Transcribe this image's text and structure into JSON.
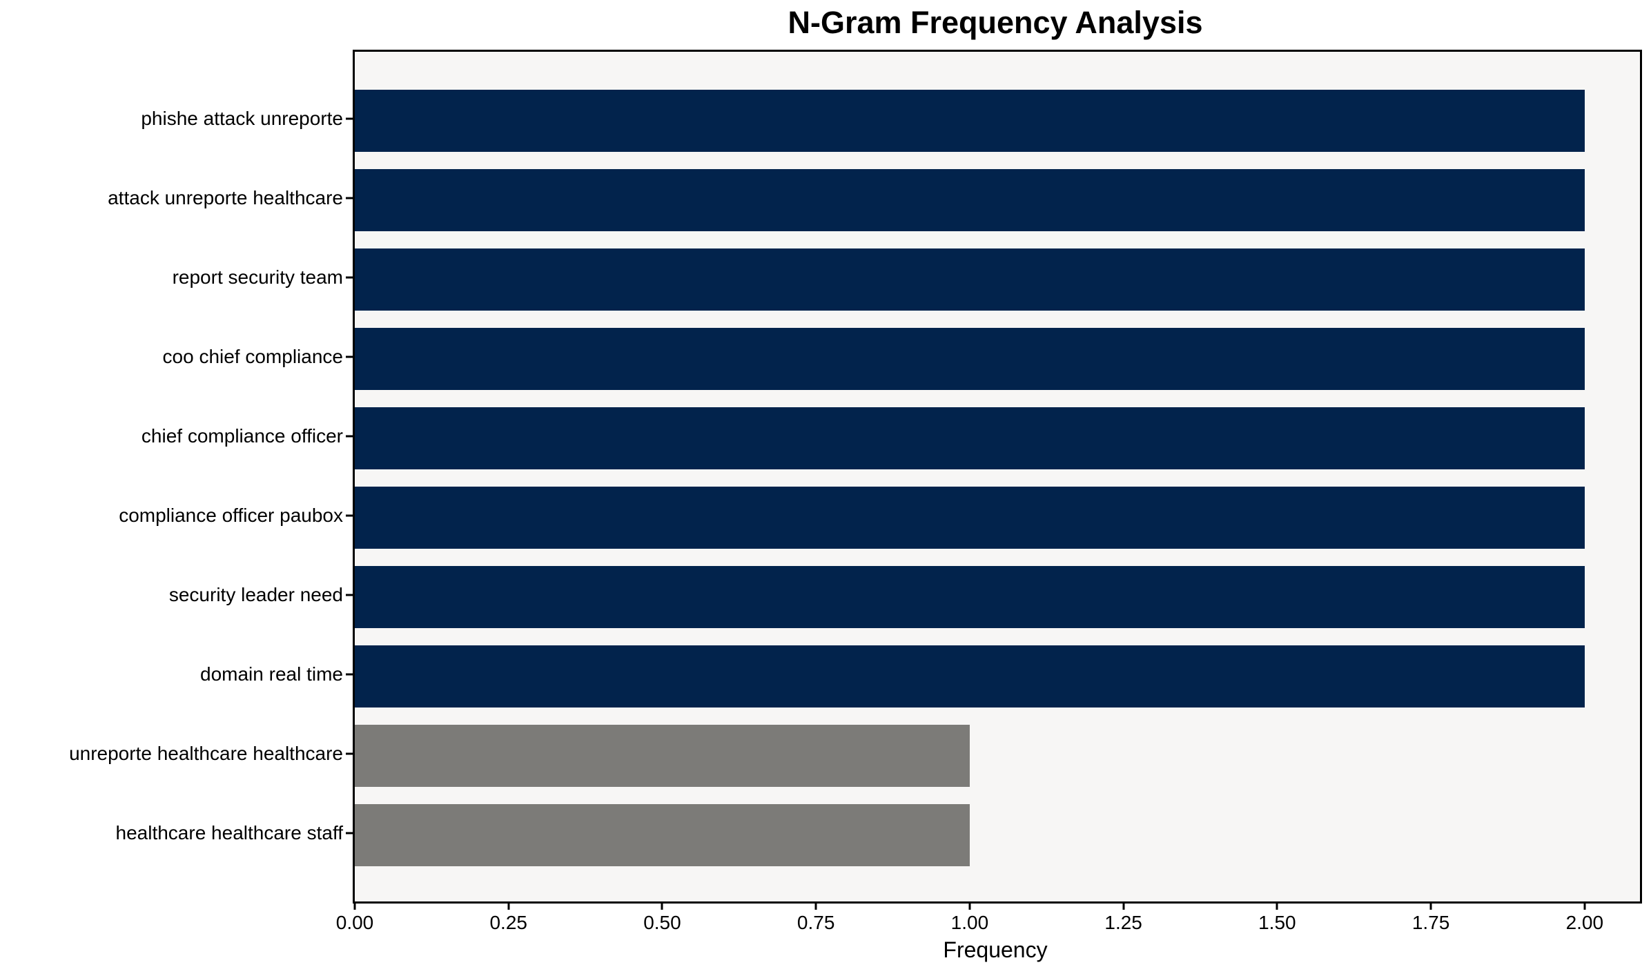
{
  "chart_data": {
    "type": "bar",
    "orientation": "horizontal",
    "title": "N-Gram Frequency Analysis",
    "xlabel": "Frequency",
    "ylabel": "",
    "categories": [
      "phishe attack unreporte",
      "attack unreporte healthcare",
      "report security team",
      "coo chief compliance",
      "chief compliance officer",
      "compliance officer paubox",
      "security leader need",
      "domain real time",
      "unreporte healthcare healthcare",
      "healthcare healthcare staff"
    ],
    "values": [
      2,
      2,
      2,
      2,
      2,
      2,
      2,
      2,
      1,
      1
    ],
    "bar_colors": [
      "#02234c",
      "#02234c",
      "#02234c",
      "#02234c",
      "#02234c",
      "#02234c",
      "#02234c",
      "#02234c",
      "#7c7b78",
      "#7c7b78"
    ],
    "xlim": [
      0,
      2.09
    ],
    "xticks": [
      0,
      0.25,
      0.5,
      0.75,
      1.0,
      1.25,
      1.5,
      1.75,
      2.0
    ],
    "xtick_labels": [
      "0.00",
      "0.25",
      "0.50",
      "0.75",
      "1.00",
      "1.25",
      "1.50",
      "1.75",
      "2.00"
    ],
    "grid": false,
    "legend": null,
    "plot_background": "#f7f6f5",
    "figure_background": "#ffffff",
    "spine_color": "#000000"
  }
}
